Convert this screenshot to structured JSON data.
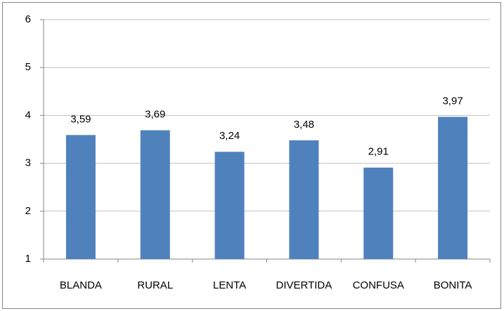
{
  "chart_data": {
    "type": "bar",
    "categories": [
      "BLANDA",
      "RURAL",
      "LENTA",
      "DIVERTIDA",
      "CONFUSA",
      "BONITA"
    ],
    "values": [
      3.59,
      3.69,
      3.24,
      3.48,
      2.91,
      3.97
    ],
    "value_labels": [
      "3,59",
      "3,69",
      "3,24",
      "3,48",
      "2,91",
      "3,97"
    ],
    "color": "#4f81bd",
    "ylim": [
      1,
      6
    ],
    "yticks": [
      1,
      2,
      3,
      4,
      5,
      6
    ],
    "grid": true
  }
}
